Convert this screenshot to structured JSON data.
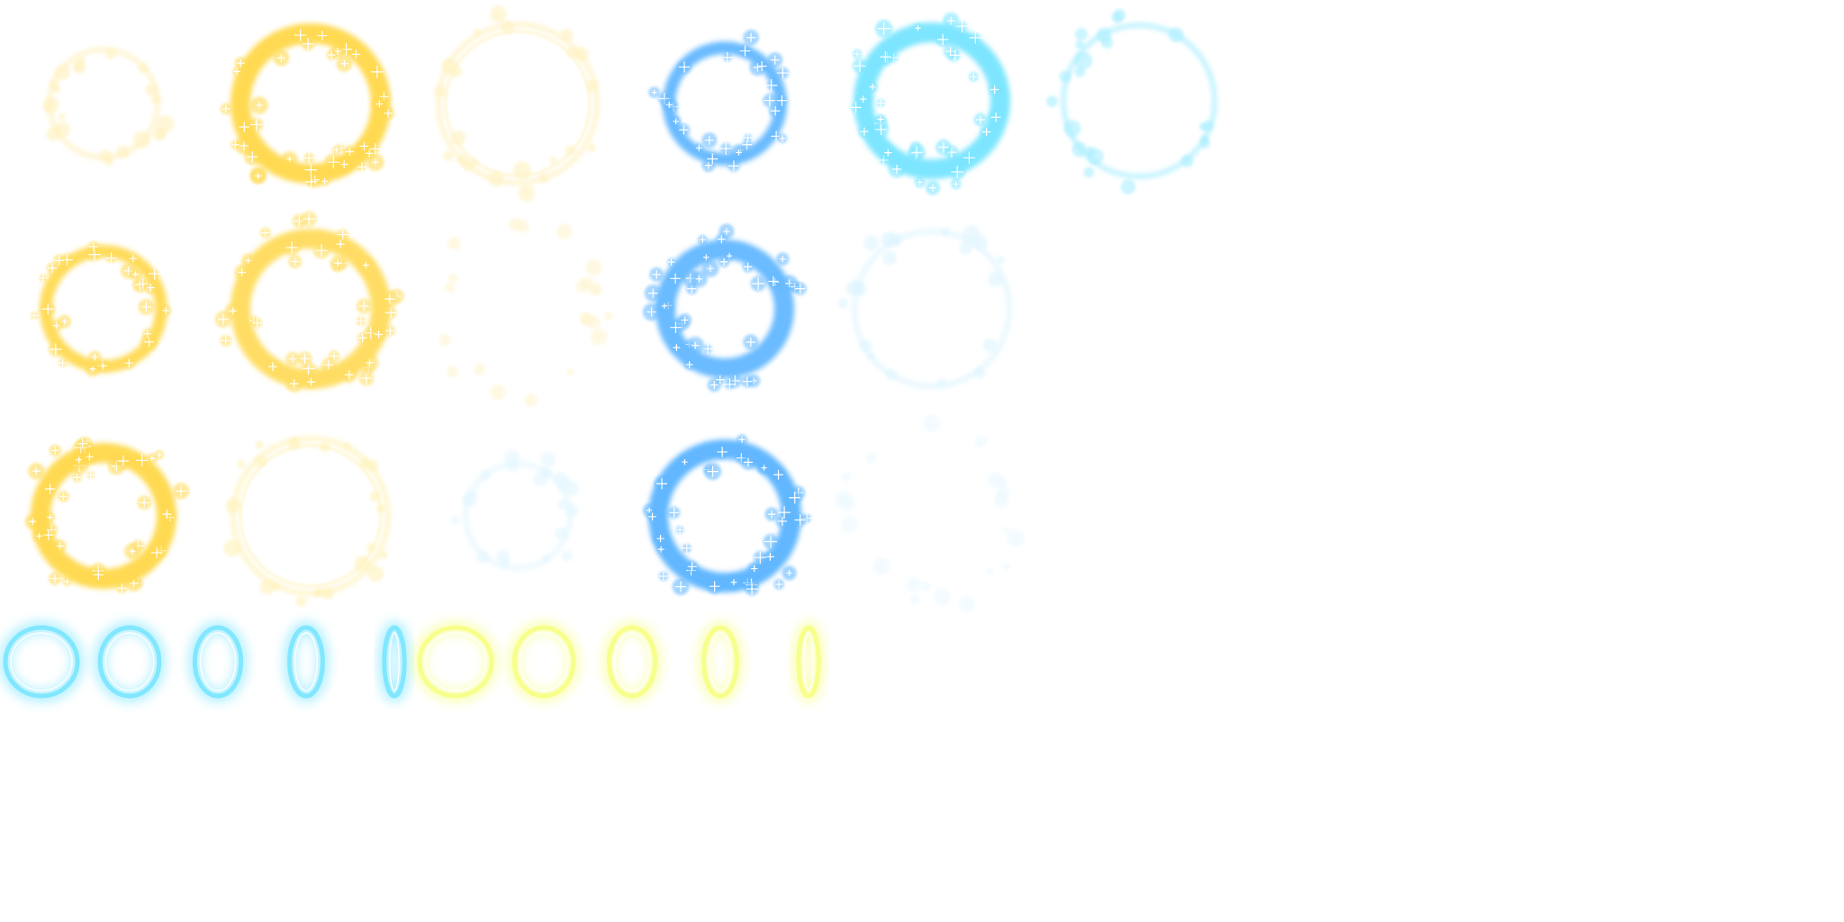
{
  "sheet": {
    "kind": "sprite-sheet",
    "description_name": "magic-circle-effect-sprites",
    "palette": {
      "gold": "#ffd84a",
      "gold_light": "#ffe98a",
      "gold_pale": "#fff3b8",
      "blue": "#5ab4ff",
      "cyan": "#6fe3ff",
      "blue_pale": "#c9eeff",
      "yellow_ring": "#f6ff7a",
      "sparkle": "#ffffff"
    },
    "sprites": [
      {
        "id": "gold-ring-thin-faint",
        "color": "gold",
        "style": "thin-sparse",
        "opacity": 0.35
      },
      {
        "id": "gold-ring-thick-bright",
        "color": "gold",
        "style": "thick-dense",
        "opacity": 0.95
      },
      {
        "id": "gold-ring-outer-faint",
        "color": "gold",
        "style": "double-sparse",
        "opacity": 0.35
      },
      {
        "id": "blue-ring-medium",
        "color": "blue",
        "style": "medium-dense",
        "opacity": 0.9
      },
      {
        "id": "cyan-ring-thick",
        "color": "cyan",
        "style": "thick-dense",
        "opacity": 0.9
      },
      {
        "id": "cyan-ring-thin",
        "color": "cyan",
        "style": "thin-sparse",
        "opacity": 0.6
      },
      {
        "id": "gold-ring-medium",
        "color": "gold",
        "style": "medium-dense",
        "opacity": 0.9
      },
      {
        "id": "gold-ring-thick-sparkle",
        "color": "gold",
        "style": "thick-dense",
        "opacity": 0.85
      },
      {
        "id": "gold-ring-dispersed",
        "color": "gold",
        "style": "dispersed",
        "opacity": 0.25
      },
      {
        "id": "blue-ring-thick-sparkle",
        "color": "blue",
        "style": "thick-dense",
        "opacity": 0.9
      },
      {
        "id": "blue-ring-thin-faint",
        "color": "blue_pale",
        "style": "thin-sparse",
        "opacity": 0.6
      },
      {
        "id": "gold-ring-bright",
        "color": "gold",
        "style": "thick-dense",
        "opacity": 0.95
      },
      {
        "id": "gold-ring-outline",
        "color": "gold_light",
        "style": "double-sparse",
        "opacity": 0.6
      },
      {
        "id": "blue-ring-small-faint",
        "color": "blue_pale",
        "style": "thin-sparse",
        "opacity": 0.5
      },
      {
        "id": "blue-ring-large-sparkle",
        "color": "blue",
        "style": "thick-dense",
        "opacity": 0.95
      },
      {
        "id": "blue-ring-dispersed",
        "color": "blue_pale",
        "style": "dispersed",
        "opacity": 0.35
      }
    ],
    "rotation_frames": {
      "cyan": {
        "color": "cyan",
        "frames": 5,
        "aspect_ratios": [
          1.0,
          0.8,
          0.6,
          0.4,
          0.2
        ]
      },
      "yellow": {
        "color": "yellow_ring",
        "frames": 5,
        "aspect_ratios": [
          1.0,
          0.8,
          0.6,
          0.4,
          0.2
        ]
      }
    }
  }
}
